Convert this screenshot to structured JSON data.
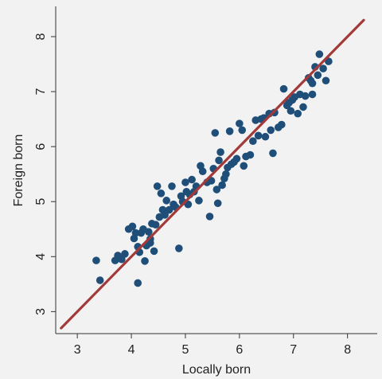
{
  "chart_data": {
    "type": "scatter",
    "title": "",
    "xlabel": "Locally born",
    "ylabel": "Foreign born",
    "xlim": [
      2.6,
      8.55
    ],
    "ylim": [
      2.6,
      8.55
    ],
    "xticks": [
      3,
      4,
      5,
      6,
      7,
      8
    ],
    "yticks": [
      3,
      4,
      5,
      6,
      7,
      8
    ],
    "xtick_labels": [
      "3",
      "4",
      "5",
      "6",
      "7",
      "8"
    ],
    "ytick_labels": [
      "3",
      "4",
      "5",
      "6",
      "7",
      "8"
    ],
    "grid": false,
    "legend": "none",
    "colors": {
      "points": "#1f4e79",
      "fit_line": "#a33a3a",
      "axis": "#333333",
      "background": "#f2f2f2"
    },
    "fit_line": {
      "x": [
        2.7,
        8.3
      ],
      "y": [
        2.7,
        8.3
      ]
    },
    "points": [
      [
        3.35,
        3.93
      ],
      [
        3.42,
        3.57
      ],
      [
        3.7,
        3.93
      ],
      [
        3.75,
        4.02
      ],
      [
        3.82,
        3.95
      ],
      [
        3.88,
        4.05
      ],
      [
        3.95,
        4.5
      ],
      [
        4.02,
        4.55
      ],
      [
        4.08,
        4.43
      ],
      [
        4.05,
        4.33
      ],
      [
        4.12,
        4.18
      ],
      [
        4.15,
        4.08
      ],
      [
        4.12,
        3.52
      ],
      [
        4.18,
        4.43
      ],
      [
        4.22,
        4.5
      ],
      [
        4.25,
        3.92
      ],
      [
        4.28,
        4.2
      ],
      [
        4.32,
        4.45
      ],
      [
        4.35,
        4.32
      ],
      [
        4.38,
        4.6
      ],
      [
        4.42,
        4.1
      ],
      [
        4.45,
        4.58
      ],
      [
        4.48,
        5.28
      ],
      [
        4.52,
        4.72
      ],
      [
        4.55,
        5.15
      ],
      [
        4.58,
        4.85
      ],
      [
        4.62,
        4.76
      ],
      [
        4.65,
        5.02
      ],
      [
        4.7,
        4.85
      ],
      [
        4.75,
        5.28
      ],
      [
        4.78,
        4.95
      ],
      [
        4.82,
        4.9
      ],
      [
        4.88,
        4.15
      ],
      [
        4.92,
        5.1
      ],
      [
        4.95,
        5.0
      ],
      [
        5.0,
        5.35
      ],
      [
        5.02,
        5.18
      ],
      [
        5.08,
        5.13
      ],
      [
        5.12,
        5.4
      ],
      [
        5.16,
        5.18
      ],
      [
        5.2,
        5.28
      ],
      [
        5.25,
        5.02
      ],
      [
        5.28,
        5.65
      ],
      [
        5.32,
        5.55
      ],
      [
        5.4,
        5.35
      ],
      [
        5.45,
        4.73
      ],
      [
        5.48,
        5.38
      ],
      [
        5.52,
        5.6
      ],
      [
        5.55,
        6.25
      ],
      [
        5.58,
        5.22
      ],
      [
        5.6,
        4.97
      ],
      [
        5.62,
        5.75
      ],
      [
        5.65,
        5.9
      ],
      [
        5.68,
        5.3
      ],
      [
        5.72,
        5.42
      ],
      [
        5.75,
        5.5
      ],
      [
        5.78,
        5.62
      ],
      [
        5.82,
        6.28
      ],
      [
        5.85,
        5.68
      ],
      [
        5.9,
        5.72
      ],
      [
        5.95,
        5.78
      ],
      [
        6.0,
        6.42
      ],
      [
        6.05,
        6.3
      ],
      [
        6.08,
        5.65
      ],
      [
        6.12,
        5.82
      ],
      [
        6.2,
        5.85
      ],
      [
        6.25,
        6.1
      ],
      [
        6.3,
        6.48
      ],
      [
        6.35,
        6.2
      ],
      [
        6.4,
        6.5
      ],
      [
        6.45,
        6.52
      ],
      [
        6.48,
        6.18
      ],
      [
        6.55,
        6.6
      ],
      [
        6.58,
        6.3
      ],
      [
        6.62,
        5.88
      ],
      [
        6.65,
        6.62
      ],
      [
        6.72,
        6.35
      ],
      [
        6.78,
        6.4
      ],
      [
        6.82,
        7.05
      ],
      [
        6.88,
        6.75
      ],
      [
        6.92,
        6.8
      ],
      [
        6.98,
        6.85
      ],
      [
        7.02,
        6.9
      ],
      [
        7.08,
        6.6
      ],
      [
        7.12,
        6.95
      ],
      [
        7.18,
        6.72
      ],
      [
        7.22,
        6.92
      ],
      [
        7.28,
        7.25
      ],
      [
        7.32,
        7.2
      ],
      [
        7.35,
        6.95
      ],
      [
        7.4,
        7.45
      ],
      [
        7.45,
        7.3
      ],
      [
        7.48,
        7.68
      ],
      [
        7.55,
        7.42
      ],
      [
        7.6,
        7.2
      ],
      [
        7.65,
        7.55
      ],
      [
        7.35,
        7.15
      ],
      [
        6.95,
        6.65
      ],
      [
        5.05,
        4.95
      ],
      [
        4.35,
        4.25
      ]
    ]
  }
}
